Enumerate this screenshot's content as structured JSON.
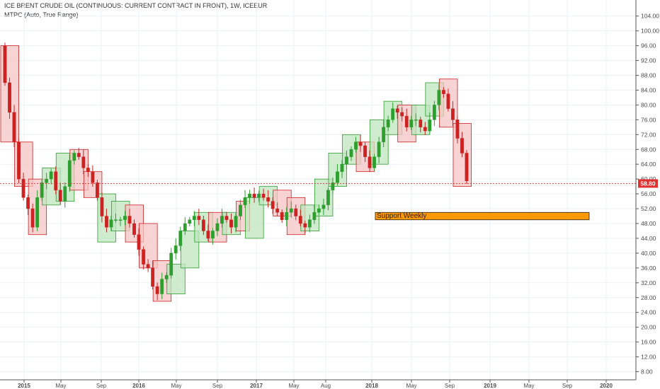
{
  "header": {
    "symbol": "ICE BRENT CRUDE OIL (CONTINUOUS: CURRENT CONTRACT IN FRONT), 1W, ICEEUR",
    "indicator": "MTPC (Auto, True Range)"
  },
  "colors": {
    "up": "#2e9e2e",
    "down": "#cc2222",
    "up_box_fill": "#bfe6bf",
    "down_box_fill": "#f6c4c4",
    "price_line": "#e03030",
    "support_fill": "#ff9900",
    "grid": "#eef1f5",
    "axis_text": "#4a4a4a"
  },
  "chart_data": {
    "type": "candlestick",
    "title": "ICE BRENT CRUDE OIL (CONTINUOUS: CURRENT CONTRACT IN FRONT), 1W, ICEEUR",
    "x_axis": {
      "tick_labels": [
        "2015",
        "May",
        "Sep",
        "2016",
        "May",
        "Sep",
        "2017",
        "May",
        "Aug",
        "2018",
        "May",
        "Sep",
        "2019",
        "May",
        "Sep",
        "2020"
      ],
      "range": [
        "2014-11",
        "2020-04"
      ]
    },
    "y_axis": {
      "ylim": [
        6,
        107
      ],
      "tick_labels": [
        "8.00",
        "12.00",
        "16.00",
        "20.00",
        "24.00",
        "28.00",
        "32.00",
        "36.00",
        "40.00",
        "44.00",
        "48.00",
        "52.00",
        "56.00",
        "60.00",
        "64.00",
        "68.00",
        "72.00",
        "76.00",
        "80.00",
        "84.00",
        "88.00",
        "92.00",
        "96.00",
        "100.00",
        "104.00"
      ],
      "position": "right"
    },
    "price_path": [
      96,
      86,
      78,
      70,
      60,
      55,
      52,
      47,
      55,
      59,
      60,
      62,
      57,
      54,
      58,
      65,
      67,
      66,
      63,
      62,
      59,
      55,
      50,
      47,
      49,
      49,
      49,
      50,
      48,
      45,
      41,
      37,
      36,
      31,
      29,
      33,
      34,
      40,
      42,
      46,
      48,
      49,
      50,
      49,
      46,
      44,
      46,
      48,
      50,
      49,
      47,
      50,
      53,
      55,
      56,
      55,
      56,
      55,
      54,
      52,
      51,
      49,
      51,
      52,
      50,
      48,
      47,
      49,
      51,
      52,
      53,
      57,
      59,
      62,
      64,
      66,
      68,
      70,
      69,
      66,
      63,
      66,
      70,
      74,
      76,
      79,
      78,
      77,
      74,
      76,
      76,
      74,
      73,
      76,
      80,
      84,
      83,
      79,
      76,
      71,
      67,
      59.5
    ],
    "ohlc_note": "weekly candles derived from price_path",
    "mtpc_boxes": [
      {
        "dir": "down",
        "top": 96,
        "bottom": 70
      },
      {
        "dir": "down",
        "top": 70,
        "bottom": 58
      },
      {
        "dir": "down",
        "top": 60,
        "bottom": 45
      },
      {
        "dir": "up",
        "top": 63,
        "bottom": 53
      },
      {
        "dir": "up",
        "top": 67,
        "bottom": 54
      },
      {
        "dir": "down",
        "top": 68,
        "bottom": 57
      },
      {
        "dir": "down",
        "top": 62,
        "bottom": 55
      },
      {
        "dir": "up",
        "top": 56,
        "bottom": 43
      },
      {
        "dir": "up",
        "top": 54,
        "bottom": 46
      },
      {
        "dir": "down",
        "top": 53,
        "bottom": 43
      },
      {
        "dir": "down",
        "top": 48,
        "bottom": 36
      },
      {
        "dir": "down",
        "top": 38,
        "bottom": 27
      },
      {
        "dir": "up",
        "top": 37,
        "bottom": 29
      },
      {
        "dir": "up",
        "top": 46,
        "bottom": 36
      },
      {
        "dir": "up",
        "top": 51,
        "bottom": 43
      },
      {
        "dir": "down",
        "top": 51,
        "bottom": 43
      },
      {
        "dir": "up",
        "top": 51,
        "bottom": 45
      },
      {
        "dir": "down",
        "top": 54,
        "bottom": 46
      },
      {
        "dir": "up",
        "top": 55,
        "bottom": 44
      },
      {
        "dir": "up",
        "top": 58,
        "bottom": 53
      },
      {
        "dir": "down",
        "top": 57,
        "bottom": 50
      },
      {
        "dir": "down",
        "top": 55,
        "bottom": 45
      },
      {
        "dir": "up",
        "top": 53,
        "bottom": 46
      },
      {
        "dir": "up",
        "top": 60,
        "bottom": 50
      },
      {
        "dir": "up",
        "top": 67,
        "bottom": 58
      },
      {
        "dir": "up",
        "top": 72,
        "bottom": 64
      },
      {
        "dir": "down",
        "top": 70,
        "bottom": 62
      },
      {
        "dir": "up",
        "top": 76,
        "bottom": 64
      },
      {
        "dir": "up",
        "top": 81,
        "bottom": 72
      },
      {
        "dir": "down",
        "top": 80,
        "bottom": 70
      },
      {
        "dir": "up",
        "top": 80,
        "bottom": 72
      },
      {
        "dir": "up",
        "top": 86,
        "bottom": 77
      },
      {
        "dir": "down",
        "top": 87,
        "bottom": 74
      },
      {
        "dir": "down",
        "top": 75,
        "bottom": 58
      }
    ],
    "last_price": {
      "value": 58.8,
      "label": "58.80"
    },
    "annotations": [
      {
        "label": "Support Weekly",
        "y_top": 51,
        "y_bottom": 49,
        "x_start": "2018-02",
        "x_end": "2019-11"
      }
    ],
    "grid": true,
    "legend": "none"
  }
}
